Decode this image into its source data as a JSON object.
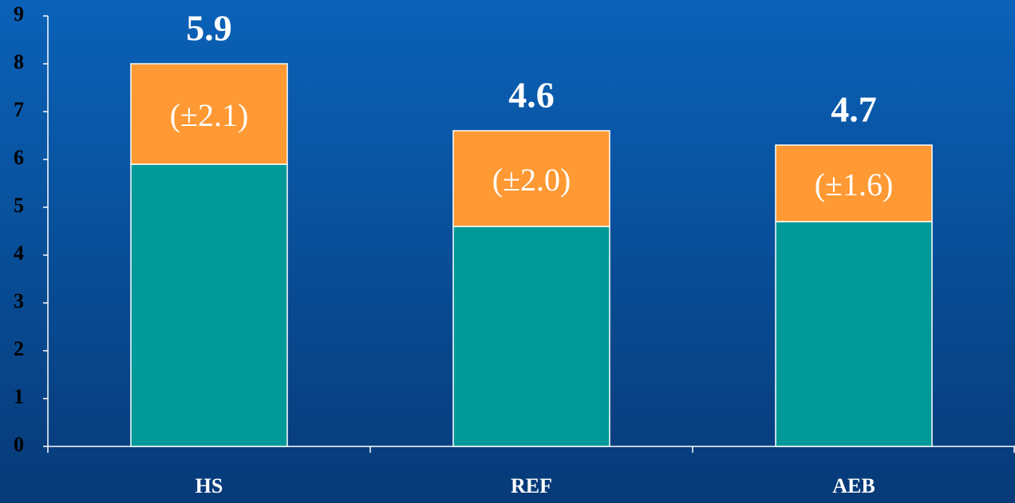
{
  "chart_data": {
    "type": "stacked_bar",
    "categories": [
      "HS",
      "REF",
      "AEB"
    ],
    "series": [
      {
        "color": "#009999",
        "values": [
          5.9,
          4.6,
          4.7
        ]
      },
      {
        "color": "#ff9933",
        "values": [
          2.1,
          2.0,
          1.6
        ],
        "value_labels": [
          "(±2.1)",
          "(±2.0)",
          "(±1.6)"
        ]
      }
    ],
    "ylim": [
      0,
      9
    ],
    "yticks": [
      0,
      1,
      2,
      3,
      4,
      5,
      6,
      7,
      8,
      9
    ],
    "grid": false
  }
}
